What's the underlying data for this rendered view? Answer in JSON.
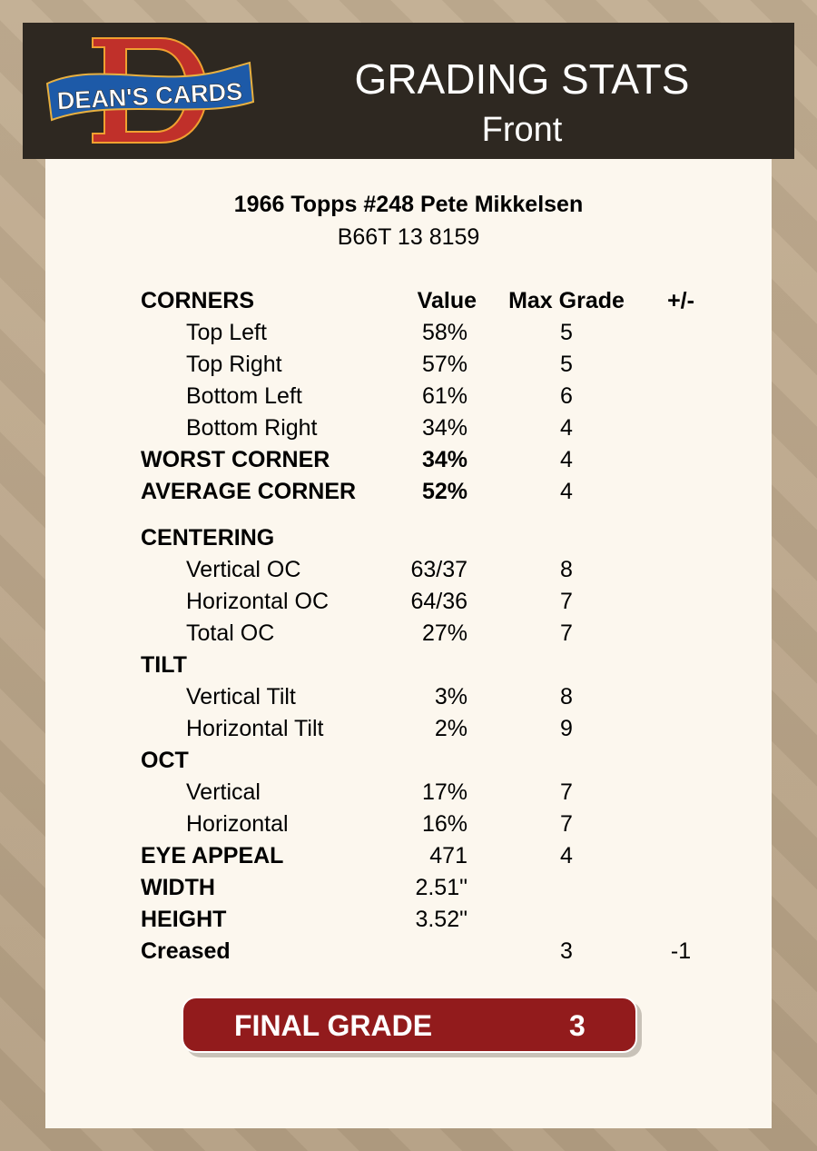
{
  "header": {
    "logo_text": "DEAN'S CARDS",
    "title": "GRADING STATS",
    "subtitle": "Front"
  },
  "card": {
    "name": "1966 Topps #248 Pete Mikkelsen",
    "id": "B66T 13 8159"
  },
  "columns": {
    "label": "CORNERS",
    "value": "Value",
    "max": "Max Grade",
    "pm": "+/-"
  },
  "rows": [
    {
      "label": "Top Left",
      "value": "58%",
      "max": "5",
      "pm": "",
      "style": "indent"
    },
    {
      "label": "Top Right",
      "value": "57%",
      "max": "5",
      "pm": "",
      "style": "indent"
    },
    {
      "label": "Bottom Left",
      "value": "61%",
      "max": "6",
      "pm": "",
      "style": "indent"
    },
    {
      "label": "Bottom Right",
      "value": "34%",
      "max": "4",
      "pm": "",
      "style": "indent"
    },
    {
      "label": "WORST CORNER",
      "value": "34%",
      "max": "4",
      "pm": "",
      "style": "bold boldval"
    },
    {
      "label": "AVERAGE CORNER",
      "value": "52%",
      "max": "4",
      "pm": "",
      "style": "bold boldval"
    },
    {
      "label": "CENTERING",
      "value": "",
      "max": "",
      "pm": "",
      "style": "bold"
    },
    {
      "label": "Vertical OC",
      "value": "63/37",
      "max": "8",
      "pm": "",
      "style": "indent"
    },
    {
      "label": "Horizontal OC",
      "value": "64/36",
      "max": "7",
      "pm": "",
      "style": "indent"
    },
    {
      "label": "Total OC",
      "value": "27%",
      "max": "7",
      "pm": "",
      "style": "indent"
    },
    {
      "label": "TILT",
      "value": "",
      "max": "",
      "pm": "",
      "style": "bold"
    },
    {
      "label": "Vertical Tilt",
      "value": "3%",
      "max": "8",
      "pm": "",
      "style": "indent"
    },
    {
      "label": "Horizontal Tilt",
      "value": "2%",
      "max": "9",
      "pm": "",
      "style": "indent"
    },
    {
      "label": "OCT",
      "value": "",
      "max": "",
      "pm": "",
      "style": "bold"
    },
    {
      "label": "Vertical",
      "value": "17%",
      "max": "7",
      "pm": "",
      "style": "indent"
    },
    {
      "label": "Horizontal",
      "value": "16%",
      "max": "7",
      "pm": "",
      "style": "indent"
    },
    {
      "label": "EYE APPEAL",
      "value": "471",
      "max": "4",
      "pm": "",
      "style": "bold"
    },
    {
      "label": "WIDTH",
      "value": "2.51\"",
      "max": "",
      "pm": "",
      "style": "bold"
    },
    {
      "label": "HEIGHT",
      "value": "3.52\"",
      "max": "",
      "pm": "",
      "style": "bold"
    },
    {
      "label": "Creased",
      "value": "",
      "max": "3",
      "pm": "-1",
      "style": "bold"
    }
  ],
  "final": {
    "label": "FINAL GRADE",
    "value": "3"
  },
  "colors": {
    "header_bg": "#2e2821",
    "card_bg": "#fcf7ee",
    "final_bg": "#921b1c"
  }
}
